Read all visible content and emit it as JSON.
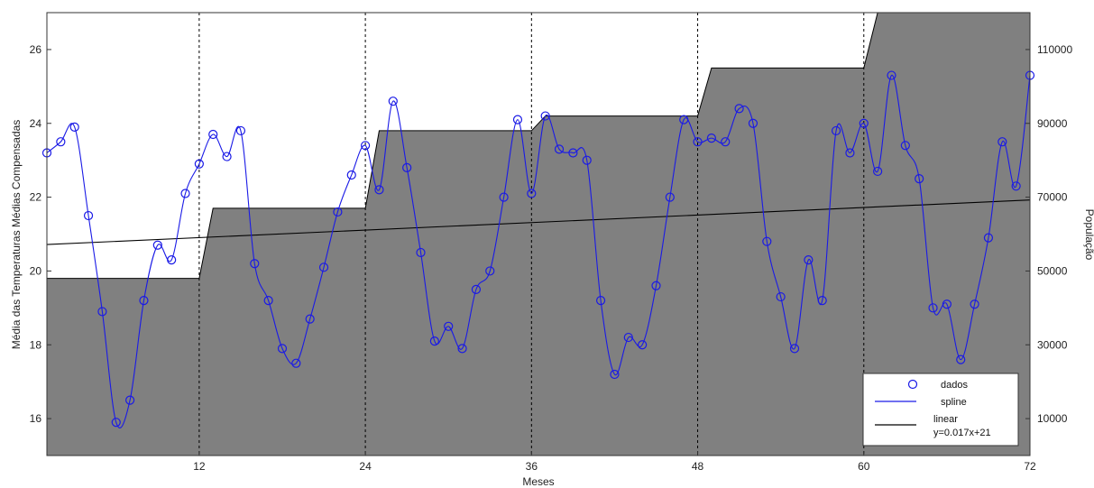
{
  "chart_data": {
    "type": "line",
    "xlabel": "Meses",
    "ylabel_left": "Média das Temperaturas Médias Compensadas",
    "ylabel_right": "População",
    "xlim": [
      1,
      72
    ],
    "ylim_left": [
      15,
      27
    ],
    "ylim_right": [
      0,
      120000
    ],
    "x_ticks": [
      12,
      24,
      36,
      48,
      60,
      72
    ],
    "x_tick_labels": [
      "12",
      "24",
      "36",
      "48",
      "60",
      "72"
    ],
    "y_left_ticks": [
      16,
      18,
      20,
      22,
      24,
      26
    ],
    "y_left_tick_labels": [
      "16",
      "18",
      "20",
      "22",
      "24",
      "26"
    ],
    "y_right_ticks": [
      10000,
      30000,
      50000,
      70000,
      90000,
      110000
    ],
    "y_right_tick_labels": [
      "10000",
      "30000",
      "50000",
      "70000",
      "90000",
      "110000"
    ],
    "vertical_dashed_lines": [
      12,
      24,
      36,
      48,
      60
    ],
    "grid": false,
    "legend_position": "bottom-right",
    "series": [
      {
        "name": "dados",
        "kind": "markers",
        "axis": "left",
        "color": "#1a1ae6",
        "x": [
          1,
          2,
          3,
          4,
          5,
          6,
          7,
          8,
          9,
          10,
          11,
          12,
          13,
          14,
          15,
          16,
          17,
          18,
          19,
          20,
          21,
          22,
          23,
          24,
          25,
          26,
          27,
          28,
          29,
          30,
          31,
          32,
          33,
          34,
          35,
          36,
          37,
          38,
          39,
          40,
          41,
          42,
          43,
          44,
          45,
          46,
          47,
          48,
          49,
          50,
          51,
          52,
          53,
          54,
          55,
          56,
          57,
          58,
          59,
          60,
          61,
          62,
          63,
          64,
          65,
          66,
          67,
          68,
          69,
          70,
          71,
          72
        ],
        "y": [
          23.2,
          23.5,
          23.9,
          21.5,
          18.9,
          15.9,
          16.5,
          19.2,
          20.7,
          20.3,
          22.1,
          22.9,
          23.7,
          23.1,
          23.8,
          20.2,
          19.2,
          17.9,
          17.5,
          18.7,
          20.1,
          21.6,
          22.6,
          23.4,
          22.2,
          24.6,
          22.8,
          20.5,
          18.1,
          18.5,
          17.9,
          19.5,
          20.0,
          22.0,
          24.1,
          22.1,
          24.2,
          23.3,
          23.2,
          23.0,
          19.2,
          17.2,
          18.2,
          18.0,
          19.6,
          22.0,
          24.1,
          23.5,
          23.6,
          23.5,
          24.4,
          24.0,
          20.8,
          19.3,
          17.9,
          20.3,
          19.2,
          23.8,
          23.2,
          24.0,
          22.7,
          25.3,
          23.4,
          22.5,
          19.0,
          19.1,
          17.6,
          19.1,
          20.9,
          23.5,
          22.3,
          25.3
        ]
      },
      {
        "name": "spline",
        "kind": "line",
        "axis": "left",
        "color": "#1a1ae6"
      },
      {
        "name": "linear",
        "kind": "line",
        "axis": "left",
        "color": "#000000",
        "equation": "y=0.017x+21",
        "slope": 0.017,
        "intercept": 20.7
      },
      {
        "kind": "area",
        "axis": "right",
        "color": "#808080",
        "x": [
          1,
          12,
          13,
          24,
          25,
          36,
          37,
          48,
          49,
          60,
          61,
          72
        ],
        "y": [
          48000,
          48000,
          67000,
          67000,
          88000,
          88000,
          92000,
          92000,
          105000,
          105000,
          120000,
          120000
        ]
      }
    ]
  },
  "legend": {
    "items": [
      {
        "label": "dados"
      },
      {
        "label": "spline"
      },
      {
        "label": "linear",
        "sublabel": "y=0.017x+21"
      }
    ]
  }
}
